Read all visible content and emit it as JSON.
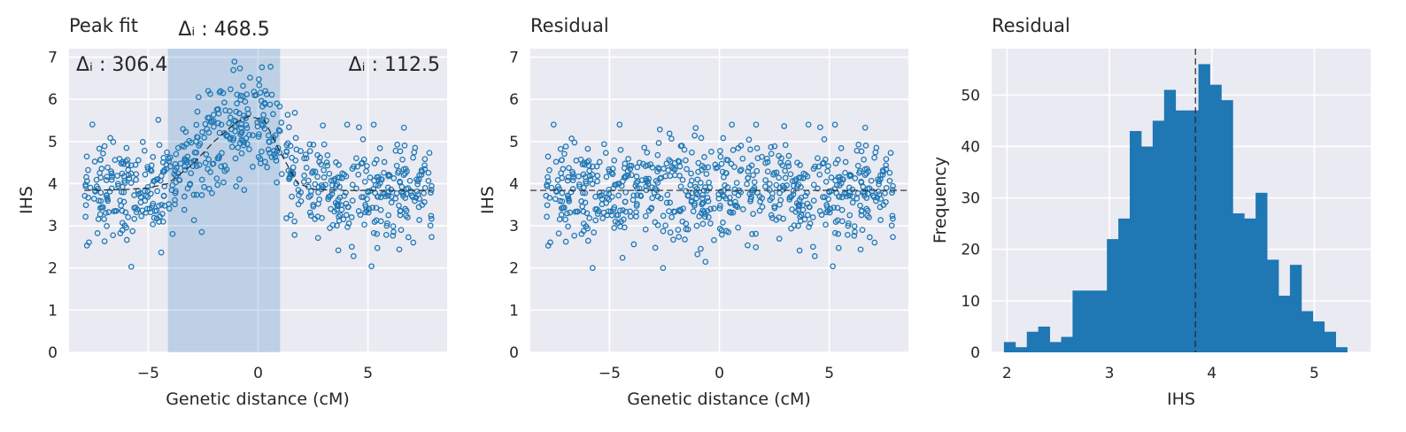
{
  "chart_data": [
    {
      "type": "scatter",
      "title": "Peak fit",
      "xlabel": "Genetic distance (cM)",
      "ylabel": "IHS",
      "xlim": [
        -8.6,
        8.6
      ],
      "ylim": [
        0,
        7.2
      ],
      "xticks": [
        -5,
        0,
        5
      ],
      "yticks": [
        0,
        1,
        2,
        3,
        4,
        5,
        6,
        7
      ],
      "grid": true,
      "marker_color": "#1f77b4",
      "region": {
        "x0": -4.1,
        "x1": 1.0,
        "color": "#1f77b4",
        "opacity": 0.22
      },
      "annotations": [
        {
          "text": "Δᵢ : 306.4",
          "position": "top-left"
        },
        {
          "text": "Δᵢ : 468.5",
          "position": "above-region"
        },
        {
          "text": "Δᵢ : 112.5",
          "position": "top-right"
        }
      ],
      "fit_curve": {
        "style": "dashed",
        "color": "#262626",
        "x": [
          -7.9,
          -6.0,
          -5.0,
          -4.1,
          -3.0,
          -2.0,
          -1.0,
          -0.4,
          0.3,
          1.0,
          1.8,
          2.6,
          4.0,
          6.0,
          7.9
        ],
        "y": [
          3.84,
          3.86,
          3.9,
          4.0,
          4.45,
          5.0,
          5.45,
          5.6,
          5.5,
          4.75,
          4.0,
          3.86,
          3.84,
          3.84,
          3.84
        ]
      }
    },
    {
      "type": "scatter",
      "title": "Residual",
      "xlabel": "Genetic distance (cM)",
      "ylabel": "IHS",
      "xlim": [
        -8.6,
        8.6
      ],
      "ylim": [
        0,
        7.2
      ],
      "xticks": [
        -5,
        0,
        5
      ],
      "yticks": [
        0,
        1,
        2,
        3,
        4,
        5,
        6,
        7
      ],
      "grid": true,
      "marker_color": "#1f77b4",
      "hline": {
        "y": 3.84,
        "style": "dashed",
        "color": "#262626"
      }
    },
    {
      "type": "bar",
      "subtype": "histogram",
      "title": "Residual",
      "xlabel": "IHS",
      "ylabel": "Frequency",
      "xlim": [
        1.85,
        5.55
      ],
      "ylim": [
        0,
        59
      ],
      "xticks": [
        2,
        3,
        4,
        5
      ],
      "yticks": [
        0,
        10,
        20,
        30,
        40,
        50
      ],
      "grid": true,
      "color": "#1f77b4",
      "bin_start": 1.97,
      "bin_width": 0.1117,
      "counts": [
        2,
        1,
        4,
        5,
        2,
        3,
        12,
        12,
        12,
        22,
        26,
        43,
        40,
        45,
        51,
        47,
        47,
        56,
        52,
        49,
        27,
        26,
        31,
        18,
        11,
        17,
        8,
        6,
        4,
        1
      ],
      "vline": {
        "x": 3.84,
        "style": "dashed",
        "color": "#262626"
      }
    }
  ]
}
